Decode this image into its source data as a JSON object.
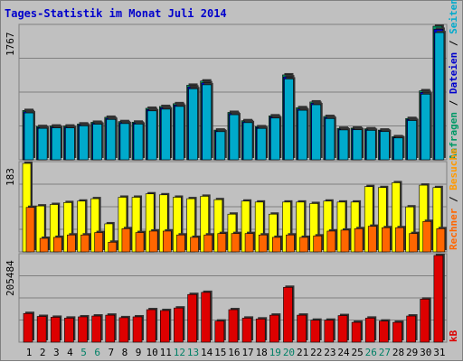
{
  "title": "Tages-Statistik im Monat Juli 2014",
  "colors": {
    "frame_bg": "#c0c0c0",
    "gridline": "#808080",
    "title": "#0000cc",
    "hits": "#009966",
    "files": "#0000cc",
    "pages": "#00aacc",
    "visits": "#ffff00",
    "sites": "#ff6600",
    "kbytes": "#dd0000",
    "weekend_label": "#008066",
    "weekday_label": "#000000"
  },
  "legend": {
    "top": {
      "hits": "Anfragen",
      "sep1": " / ",
      "files": "Dateien",
      "sep2": " / ",
      "pages": "Seiten"
    },
    "middle": {
      "visits": "Besuche",
      "sep": " / ",
      "sites": "Rechner"
    },
    "bottom": {
      "kbytes": "kB"
    }
  },
  "chart_data": [
    {
      "type": "bar",
      "panel": "top",
      "ymax_label": "1767",
      "ylim": [
        0,
        1767
      ],
      "categories": [
        "1",
        "2",
        "3",
        "4",
        "5",
        "6",
        "7",
        "8",
        "9",
        "10",
        "11",
        "12",
        "13",
        "14",
        "15",
        "16",
        "17",
        "18",
        "19",
        "20",
        "21",
        "22",
        "23",
        "24",
        "25",
        "26",
        "27",
        "28",
        "29",
        "30",
        "31"
      ],
      "weekend_days": [
        "5",
        "6",
        "12",
        "13",
        "19",
        "20",
        "26",
        "27"
      ],
      "series": [
        {
          "name": "Anfragen",
          "values": [
            652,
            440,
            446,
            446,
            474,
            496,
            562,
            505,
            498,
            681,
            705,
            742,
            986,
            1042,
            393,
            627,
            517,
            437,
            581,
            1123,
            689,
            765,
            573,
            416,
            419,
            410,
            393,
            305,
            546,
            913,
            1767
          ]
        },
        {
          "name": "Dateien",
          "values": [
            636,
            427,
            433,
            433,
            461,
            483,
            548,
            492,
            485,
            664,
            688,
            724,
            963,
            1018,
            382,
            612,
            504,
            426,
            567,
            1097,
            672,
            747,
            559,
            405,
            408,
            399,
            383,
            297,
            533,
            891,
            1726
          ]
        },
        {
          "name": "Seiten",
          "values": [
            620,
            416,
            422,
            422,
            449,
            470,
            534,
            479,
            472,
            647,
            670,
            706,
            939,
            992,
            372,
            596,
            491,
            415,
            552,
            1069,
            655,
            728,
            545,
            395,
            397,
            389,
            373,
            289,
            519,
            868,
            1682
          ]
        }
      ]
    },
    {
      "type": "bar",
      "panel": "middle",
      "ymax_label": "183",
      "ylim": [
        0,
        183
      ],
      "categories": [
        "1",
        "2",
        "3",
        "4",
        "5",
        "6",
        "7",
        "8",
        "9",
        "10",
        "11",
        "12",
        "13",
        "14",
        "15",
        "16",
        "17",
        "18",
        "19",
        "20",
        "21",
        "22",
        "23",
        "24",
        "25",
        "26",
        "27",
        "28",
        "29",
        "30",
        "31"
      ],
      "series": [
        {
          "name": "Besuche",
          "values": [
            183,
            95,
            98,
            102,
            105,
            110,
            58,
            113,
            113,
            120,
            118,
            113,
            110,
            115,
            108,
            78,
            105,
            103,
            78,
            103,
            103,
            100,
            105,
            103,
            103,
            135,
            133,
            143,
            93,
            138,
            133
          ]
        },
        {
          "name": "Rechner",
          "values": [
            92,
            28,
            30,
            35,
            35,
            40,
            20,
            48,
            40,
            43,
            43,
            35,
            30,
            35,
            38,
            38,
            38,
            35,
            30,
            35,
            30,
            33,
            43,
            45,
            48,
            53,
            50,
            50,
            38,
            63,
            48
          ]
        }
      ]
    },
    {
      "type": "bar",
      "panel": "bottom",
      "ymax_label": "205484",
      "ylim": [
        0,
        205484
      ],
      "categories": [
        "1",
        "2",
        "3",
        "4",
        "5",
        "6",
        "7",
        "8",
        "9",
        "10",
        "11",
        "12",
        "13",
        "14",
        "15",
        "16",
        "17",
        "18",
        "19",
        "20",
        "21",
        "22",
        "23",
        "24",
        "25",
        "26",
        "27",
        "28",
        "29",
        "30",
        "31"
      ],
      "series": [
        {
          "name": "kB",
          "values": [
            68000,
            61000,
            59000,
            57000,
            60000,
            62000,
            64000,
            58000,
            60000,
            77000,
            75000,
            81000,
            113000,
            118000,
            50000,
            77000,
            57000,
            55000,
            64000,
            130000,
            64000,
            52000,
            52000,
            63000,
            47000,
            57000,
            50000,
            47000,
            62000,
            102000,
            205484
          ]
        }
      ]
    }
  ]
}
